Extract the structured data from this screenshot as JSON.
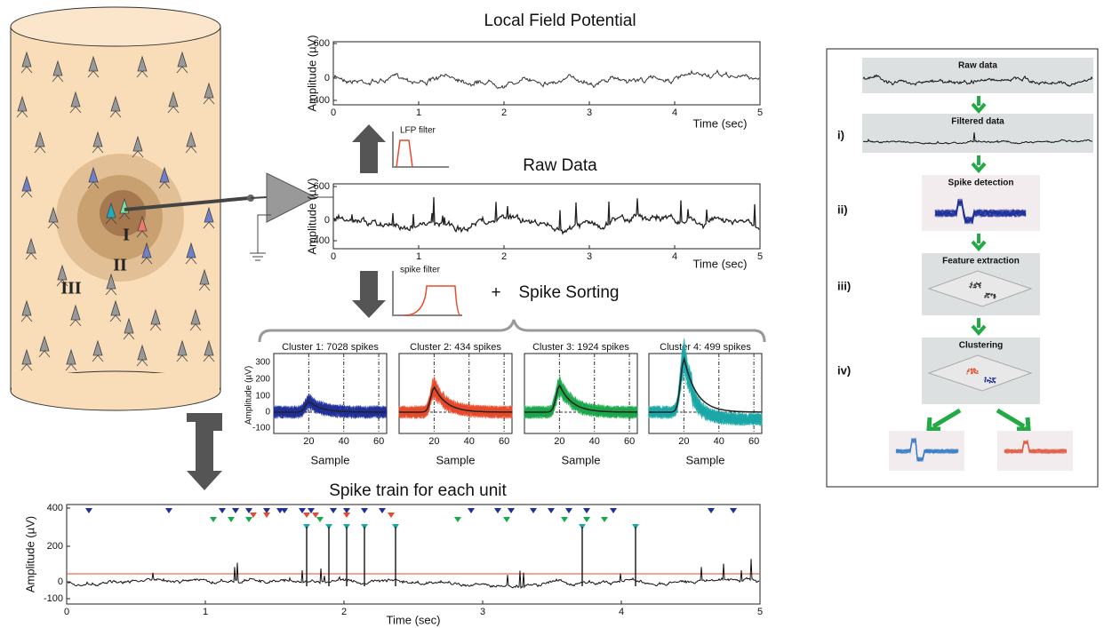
{
  "cylinder": {
    "layers": [
      "I",
      "II",
      "III"
    ]
  },
  "lfp": {
    "title": "Local Field Potential",
    "y_label": "Amplitude (µV)",
    "yticks": [
      600,
      0,
      -400
    ],
    "xticks": [
      0,
      1,
      2,
      3,
      4,
      5
    ],
    "x_label": "Time (sec)"
  },
  "raw": {
    "title": "Raw Data",
    "y_label": "Amplitude (µV)",
    "yticks": [
      600,
      0,
      -400
    ],
    "xticks": [
      0,
      1,
      2,
      3,
      4,
      5
    ],
    "x_label": "Time (sec)"
  },
  "filters": {
    "lfp": "LFP filter",
    "spike": "spike filter",
    "plus": "+",
    "sorting": "Spike Sorting"
  },
  "clusters": {
    "y_label": "Amplitude (µV)",
    "yticks": [
      300,
      200,
      100,
      0,
      -100
    ],
    "xticks": [
      20,
      40,
      60
    ],
    "x_label": "Sample",
    "items": [
      {
        "title": "Cluster 1: 7028 spikes",
        "color": "#1f2f9a"
      },
      {
        "title": "Cluster 2: 434 spikes",
        "color": "#e8492a"
      },
      {
        "title": "Cluster 3: 1924 spikes",
        "color": "#19a84a"
      },
      {
        "title": "Cluster 4: 499 spikes",
        "color": "#1aa8a8"
      }
    ]
  },
  "train": {
    "title": "Spike train for each unit",
    "y_label": "Amplitude (µV)",
    "yticks": [
      400,
      200,
      0,
      -100
    ],
    "xticks": [
      0,
      1,
      2,
      3,
      4,
      5
    ],
    "x_label": "Time (sec)"
  },
  "pipeline": {
    "steps": [
      "Raw data",
      "Filtered data",
      "Spike detection",
      "Feature extraction",
      "Clustering"
    ],
    "numerals": [
      "i)",
      "ii)",
      "iii)",
      "iv)"
    ]
  }
}
